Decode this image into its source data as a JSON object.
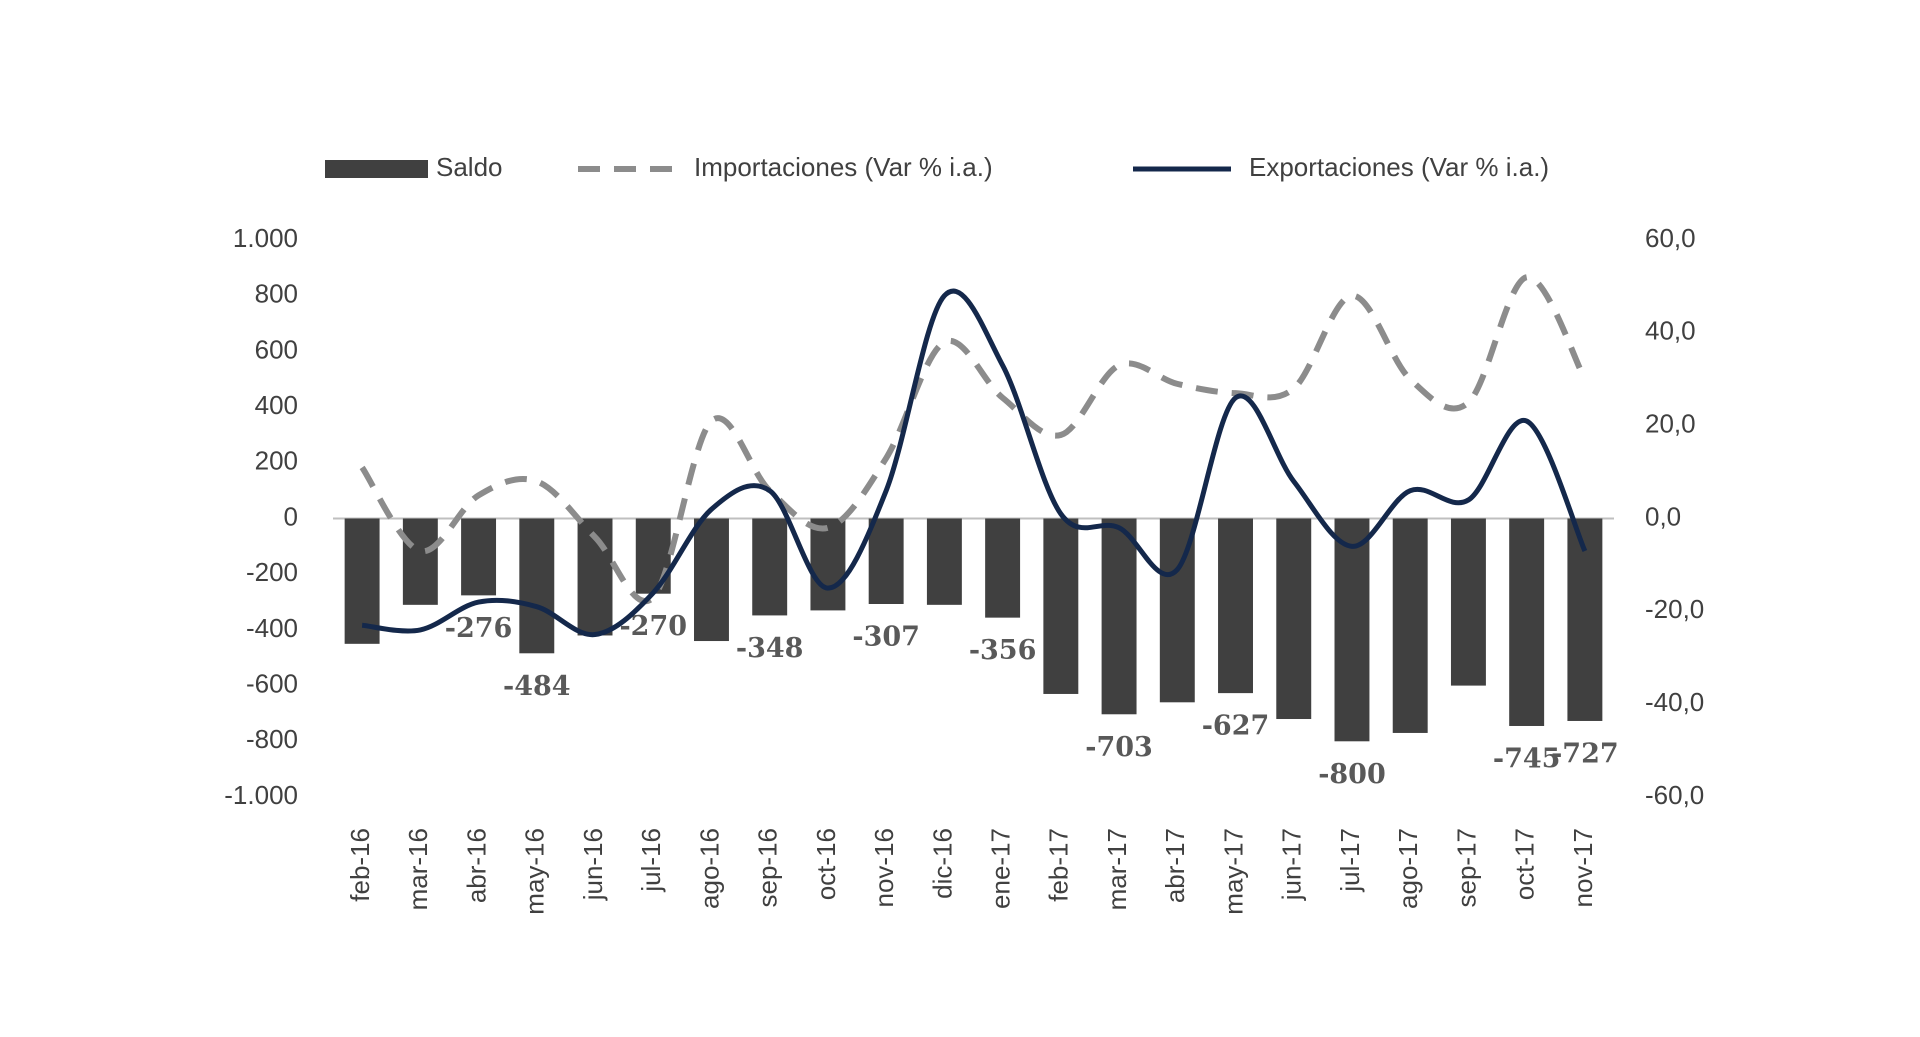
{
  "chart_data": {
    "type": "combo",
    "categories": [
      "feb-16",
      "mar-16",
      "abr-16",
      "may-16",
      "jun-16",
      "jul-16",
      "ago-16",
      "sep-16",
      "oct-16",
      "nov-16",
      "dic-16",
      "ene-17",
      "feb-17",
      "mar-17",
      "abr-17",
      "may-17",
      "jun-17",
      "jul-17",
      "ago-17",
      "sep-17",
      "oct-17",
      "nov-17"
    ],
    "series": [
      {
        "name": "Saldo",
        "type": "bar",
        "color": "#404040",
        "values": [
          -450,
          -310,
          -276,
          -484,
          -420,
          -270,
          -440,
          -348,
          -330,
          -307,
          -310,
          -356,
          -630,
          -703,
          -660,
          -627,
          -720,
          -800,
          -770,
          -600,
          -745,
          -727
        ],
        "value_labels": [
          null,
          null,
          "-276",
          "-484",
          null,
          "-270",
          null,
          "-348",
          null,
          "-307",
          null,
          "-356",
          null,
          "-703",
          null,
          "-627",
          null,
          "-800",
          null,
          null,
          "-745",
          "-727"
        ]
      },
      {
        "name": "Importaciones (Var % i.a.)",
        "type": "line",
        "style": "dashed",
        "color": "#8c8c8c",
        "axis": "y2",
        "values": [
          11,
          -7,
          5,
          8,
          -4,
          -17,
          21,
          6,
          -2,
          13,
          38,
          26,
          18,
          33,
          29,
          27,
          28,
          48,
          30,
          25,
          52,
          30
        ]
      },
      {
        "name": "Exportaciones (Var % i.a.)",
        "type": "line",
        "style": "solid",
        "color": "#14284b",
        "axis": "y2",
        "values": [
          -23,
          -24,
          -18,
          -19,
          -25,
          -16,
          2,
          6,
          -15,
          6,
          48,
          33,
          1,
          -2,
          -11,
          26,
          8,
          -6,
          6,
          4,
          21,
          -7
        ]
      }
    ],
    "ylim": [
      -1000,
      1000
    ],
    "yticks": [
      {
        "value": 1000,
        "label": "1.000"
      },
      800,
      600,
      400,
      200,
      0,
      -200,
      -400,
      -600,
      -800,
      {
        "value": -1000,
        "label": "-1.000"
      }
    ],
    "y2lim": [
      -60,
      60
    ],
    "y2ticks": [
      {
        "value": 60,
        "label": "60,0"
      },
      {
        "value": 40,
        "label": "40,0"
      },
      {
        "value": 20,
        "label": "20,0"
      },
      {
        "value": 0,
        "label": "0,0"
      },
      {
        "value": -20,
        "label": "-20,0"
      },
      {
        "value": -40,
        "label": "-40,0"
      },
      {
        "value": -60,
        "label": "-60,0"
      }
    ],
    "grid": false,
    "legend": "top"
  }
}
